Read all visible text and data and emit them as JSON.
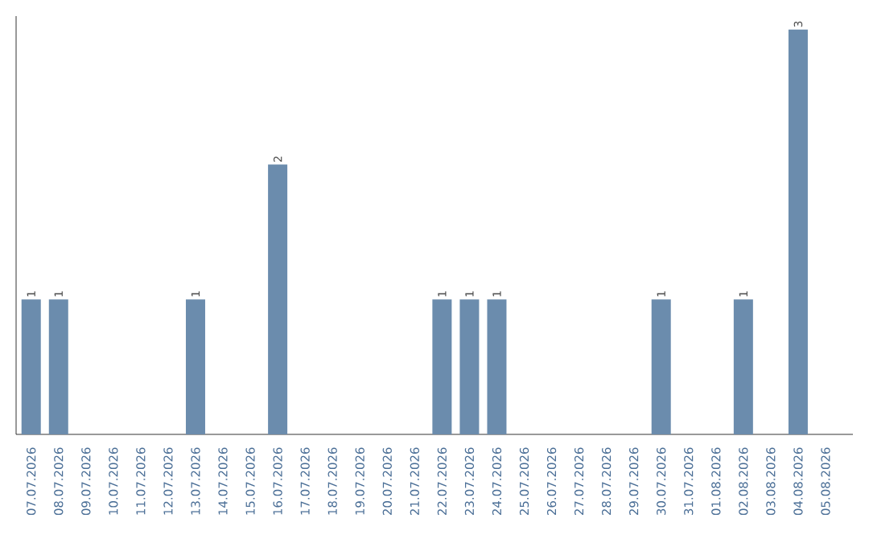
{
  "chart_data": {
    "type": "bar",
    "categories": [
      "07.07.2026",
      "08.07.2026",
      "09.07.2026",
      "10.07.2026",
      "11.07.2026",
      "12.07.2026",
      "13.07.2026",
      "14.07.2026",
      "15.07.2026",
      "16.07.2026",
      "17.07.2026",
      "18.07.2026",
      "19.07.2026",
      "20.07.2026",
      "21.07.2026",
      "22.07.2026",
      "23.07.2026",
      "24.07.2026",
      "25.07.2026",
      "26.07.2026",
      "27.07.2026",
      "28.07.2026",
      "29.07.2026",
      "30.07.2026",
      "31.07.2026",
      "01.08.2026",
      "02.08.2026",
      "03.08.2026",
      "04.08.2026",
      "05.08.2026"
    ],
    "values": [
      1,
      1,
      0,
      0,
      0,
      0,
      1,
      0,
      0,
      2,
      0,
      0,
      0,
      0,
      0,
      1,
      1,
      1,
      0,
      0,
      0,
      0,
      0,
      1,
      0,
      0,
      1,
      0,
      3,
      0
    ],
    "value_labels": [
      "1",
      "1",
      null,
      null,
      null,
      null,
      "1",
      null,
      null,
      "2",
      null,
      null,
      null,
      null,
      null,
      "1",
      "1",
      "1",
      null,
      null,
      null,
      null,
      null,
      "1",
      null,
      null,
      "1",
      null,
      "3",
      null
    ],
    "color": "#6b8cad",
    "ylim": [
      0,
      3.1
    ],
    "tick_labels": "x"
  }
}
